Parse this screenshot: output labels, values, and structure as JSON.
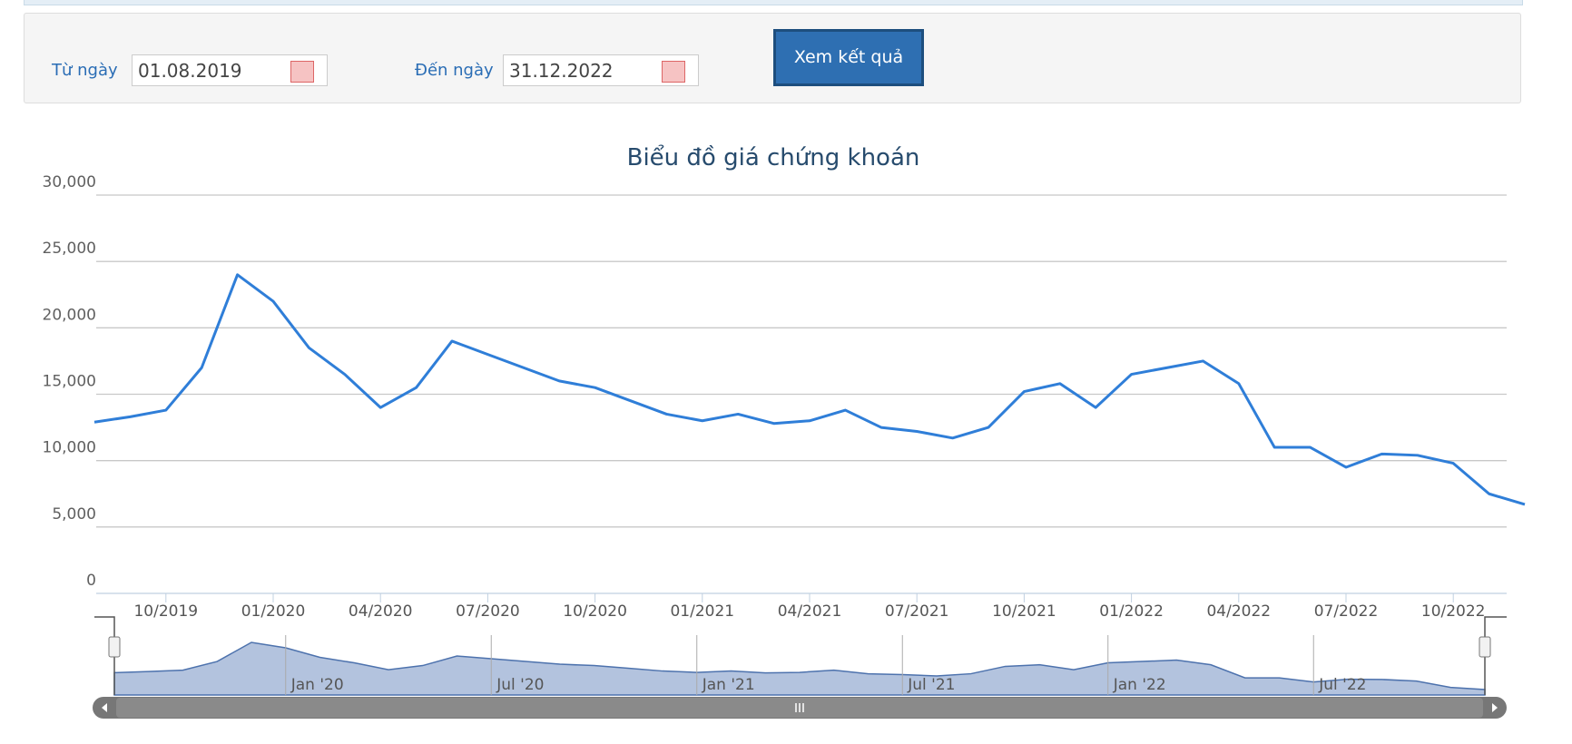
{
  "filter": {
    "from_label": "Từ ngày",
    "from_value": "01.08.2019",
    "to_label": "Đến ngày",
    "to_value": "31.12.2022",
    "button": "Xem kết quả"
  },
  "chart_data": {
    "type": "line",
    "title": "Biểu đồ giá chứng khoán",
    "x": [
      "08/2019",
      "09/2019",
      "10/2019",
      "11/2019",
      "12/2019",
      "01/2020",
      "02/2020",
      "03/2020",
      "04/2020",
      "05/2020",
      "06/2020",
      "07/2020",
      "08/2020",
      "09/2020",
      "10/2020",
      "11/2020",
      "12/2020",
      "01/2021",
      "02/2021",
      "03/2021",
      "04/2021",
      "05/2021",
      "06/2021",
      "07/2021",
      "08/2021",
      "09/2021",
      "10/2021",
      "11/2021",
      "12/2021",
      "01/2022",
      "02/2022",
      "03/2022",
      "04/2022",
      "05/2022",
      "06/2022",
      "07/2022",
      "08/2022",
      "09/2022",
      "10/2022",
      "11/2022",
      "12/2022"
    ],
    "series": [
      {
        "color": "#2f7ed8",
        "values": [
          12900,
          13300,
          13800,
          17000,
          24000,
          22000,
          18500,
          16500,
          14000,
          15500,
          19000,
          18000,
          17000,
          16000,
          15500,
          14500,
          13500,
          13000,
          13500,
          12800,
          13000,
          13800,
          12500,
          12200,
          11700,
          12500,
          15200,
          15800,
          14000,
          16500,
          17000,
          17500,
          15800,
          11000,
          11000,
          9500,
          10500,
          10400,
          9800,
          7500,
          6700
        ]
      }
    ],
    "ylim": [
      0,
      30000
    ],
    "yticks": [
      {
        "value": 0,
        "label": "0"
      },
      {
        "value": 5000,
        "label": "5,000"
      },
      {
        "value": 10000,
        "label": "10,000"
      },
      {
        "value": 15000,
        "label": "15,000"
      },
      {
        "value": 20000,
        "label": "20,000"
      },
      {
        "value": 25000,
        "label": "25,000"
      },
      {
        "value": 30000,
        "label": "30,000"
      }
    ],
    "xticks": [
      "10/2019",
      "01/2020",
      "04/2020",
      "07/2020",
      "10/2020",
      "01/2021",
      "04/2021",
      "07/2021",
      "10/2021",
      "01/2022",
      "04/2022",
      "07/2022",
      "10/2022"
    ],
    "grid": true
  },
  "navigator": {
    "labels": [
      "Jan '20",
      "Jul '20",
      "Jan '21",
      "Jul '21",
      "Jan '22",
      "Jul '22"
    ]
  }
}
